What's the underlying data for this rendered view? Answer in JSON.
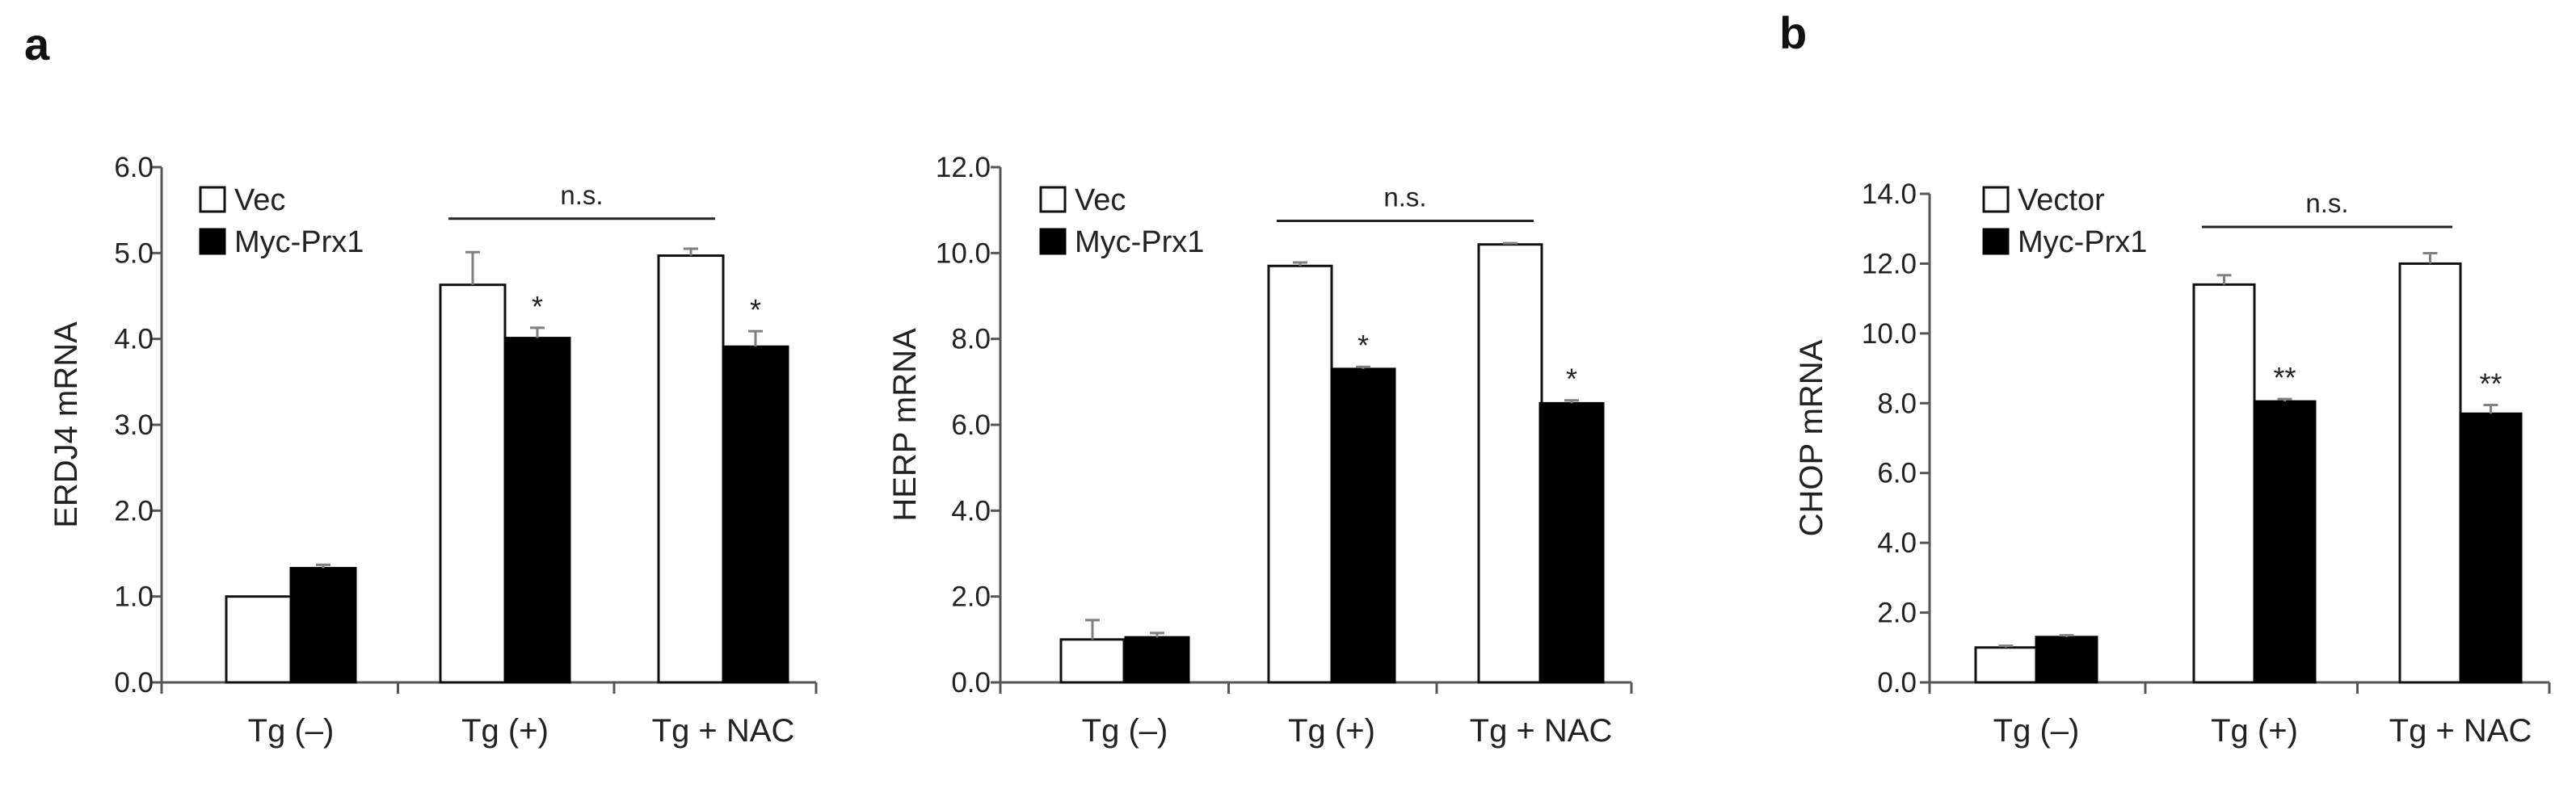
{
  "panel_labels": {
    "a": "a",
    "b": "b"
  },
  "chart_data": [
    {
      "type": "bar",
      "ylabel": "ERDJ4 mRNA",
      "ylim": [
        0,
        6
      ],
      "yticks": [
        "0.0",
        "1.0",
        "2.0",
        "3.0",
        "4.0",
        "5.0",
        "6.0"
      ],
      "categories": [
        "Tg (–)",
        "Tg (+)",
        "Tg + NAC"
      ],
      "series": [
        {
          "name": "Vec",
          "style": "open",
          "values": [
            1.0,
            4.63,
            4.97
          ],
          "errors": [
            0.0,
            0.38,
            0.08
          ]
        },
        {
          "name": "Myc-Prx1",
          "style": "solid",
          "values": [
            1.33,
            4.01,
            3.91
          ],
          "errors": [
            0.04,
            0.12,
            0.18
          ]
        }
      ],
      "sig_marks": [
        "",
        "*",
        "*"
      ],
      "bracket": {
        "label": "n.s.",
        "from": 1,
        "to": 2,
        "y": 5.4
      }
    },
    {
      "type": "bar",
      "ylabel": "HERP mRNA",
      "ylim": [
        0,
        12
      ],
      "yticks": [
        "0.0",
        "2.0",
        "4.0",
        "6.0",
        "8.0",
        "10.0",
        "12.0"
      ],
      "categories": [
        "Tg (–)",
        "Tg (+)",
        "Tg + NAC"
      ],
      "series": [
        {
          "name": "Vec",
          "style": "open",
          "values": [
            1.0,
            9.7,
            10.2
          ],
          "errors": [
            0.45,
            0.08,
            0.03
          ]
        },
        {
          "name": "Myc-Prx1",
          "style": "solid",
          "values": [
            1.05,
            7.3,
            6.5
          ],
          "errors": [
            0.1,
            0.05,
            0.07
          ]
        }
      ],
      "sig_marks": [
        "",
        "*",
        "*"
      ],
      "bracket": {
        "label": "n.s.",
        "from": 1,
        "to": 2,
        "y": 10.75
      }
    },
    {
      "type": "bar",
      "ylabel": "CHOP mRNA",
      "ylim": [
        0,
        14
      ],
      "yticks": [
        "0.0",
        "2.0",
        "4.0",
        "6.0",
        "8.0",
        "10.0",
        "12.0",
        "14.0"
      ],
      "categories": [
        "Tg (–)",
        "Tg (+)",
        "Tg + NAC"
      ],
      "series": [
        {
          "name": "Vector",
          "style": "open",
          "values": [
            1.0,
            11.4,
            12.0
          ],
          "errors": [
            0.05,
            0.27,
            0.3
          ]
        },
        {
          "name": "Myc-Prx1",
          "style": "solid",
          "values": [
            1.3,
            8.05,
            7.7
          ],
          "errors": [
            0.05,
            0.07,
            0.25
          ]
        }
      ],
      "sig_marks": [
        "",
        "**",
        "**"
      ],
      "bracket": {
        "label": "n.s.",
        "from": 1,
        "to": 2,
        "y": 13.05
      }
    }
  ]
}
